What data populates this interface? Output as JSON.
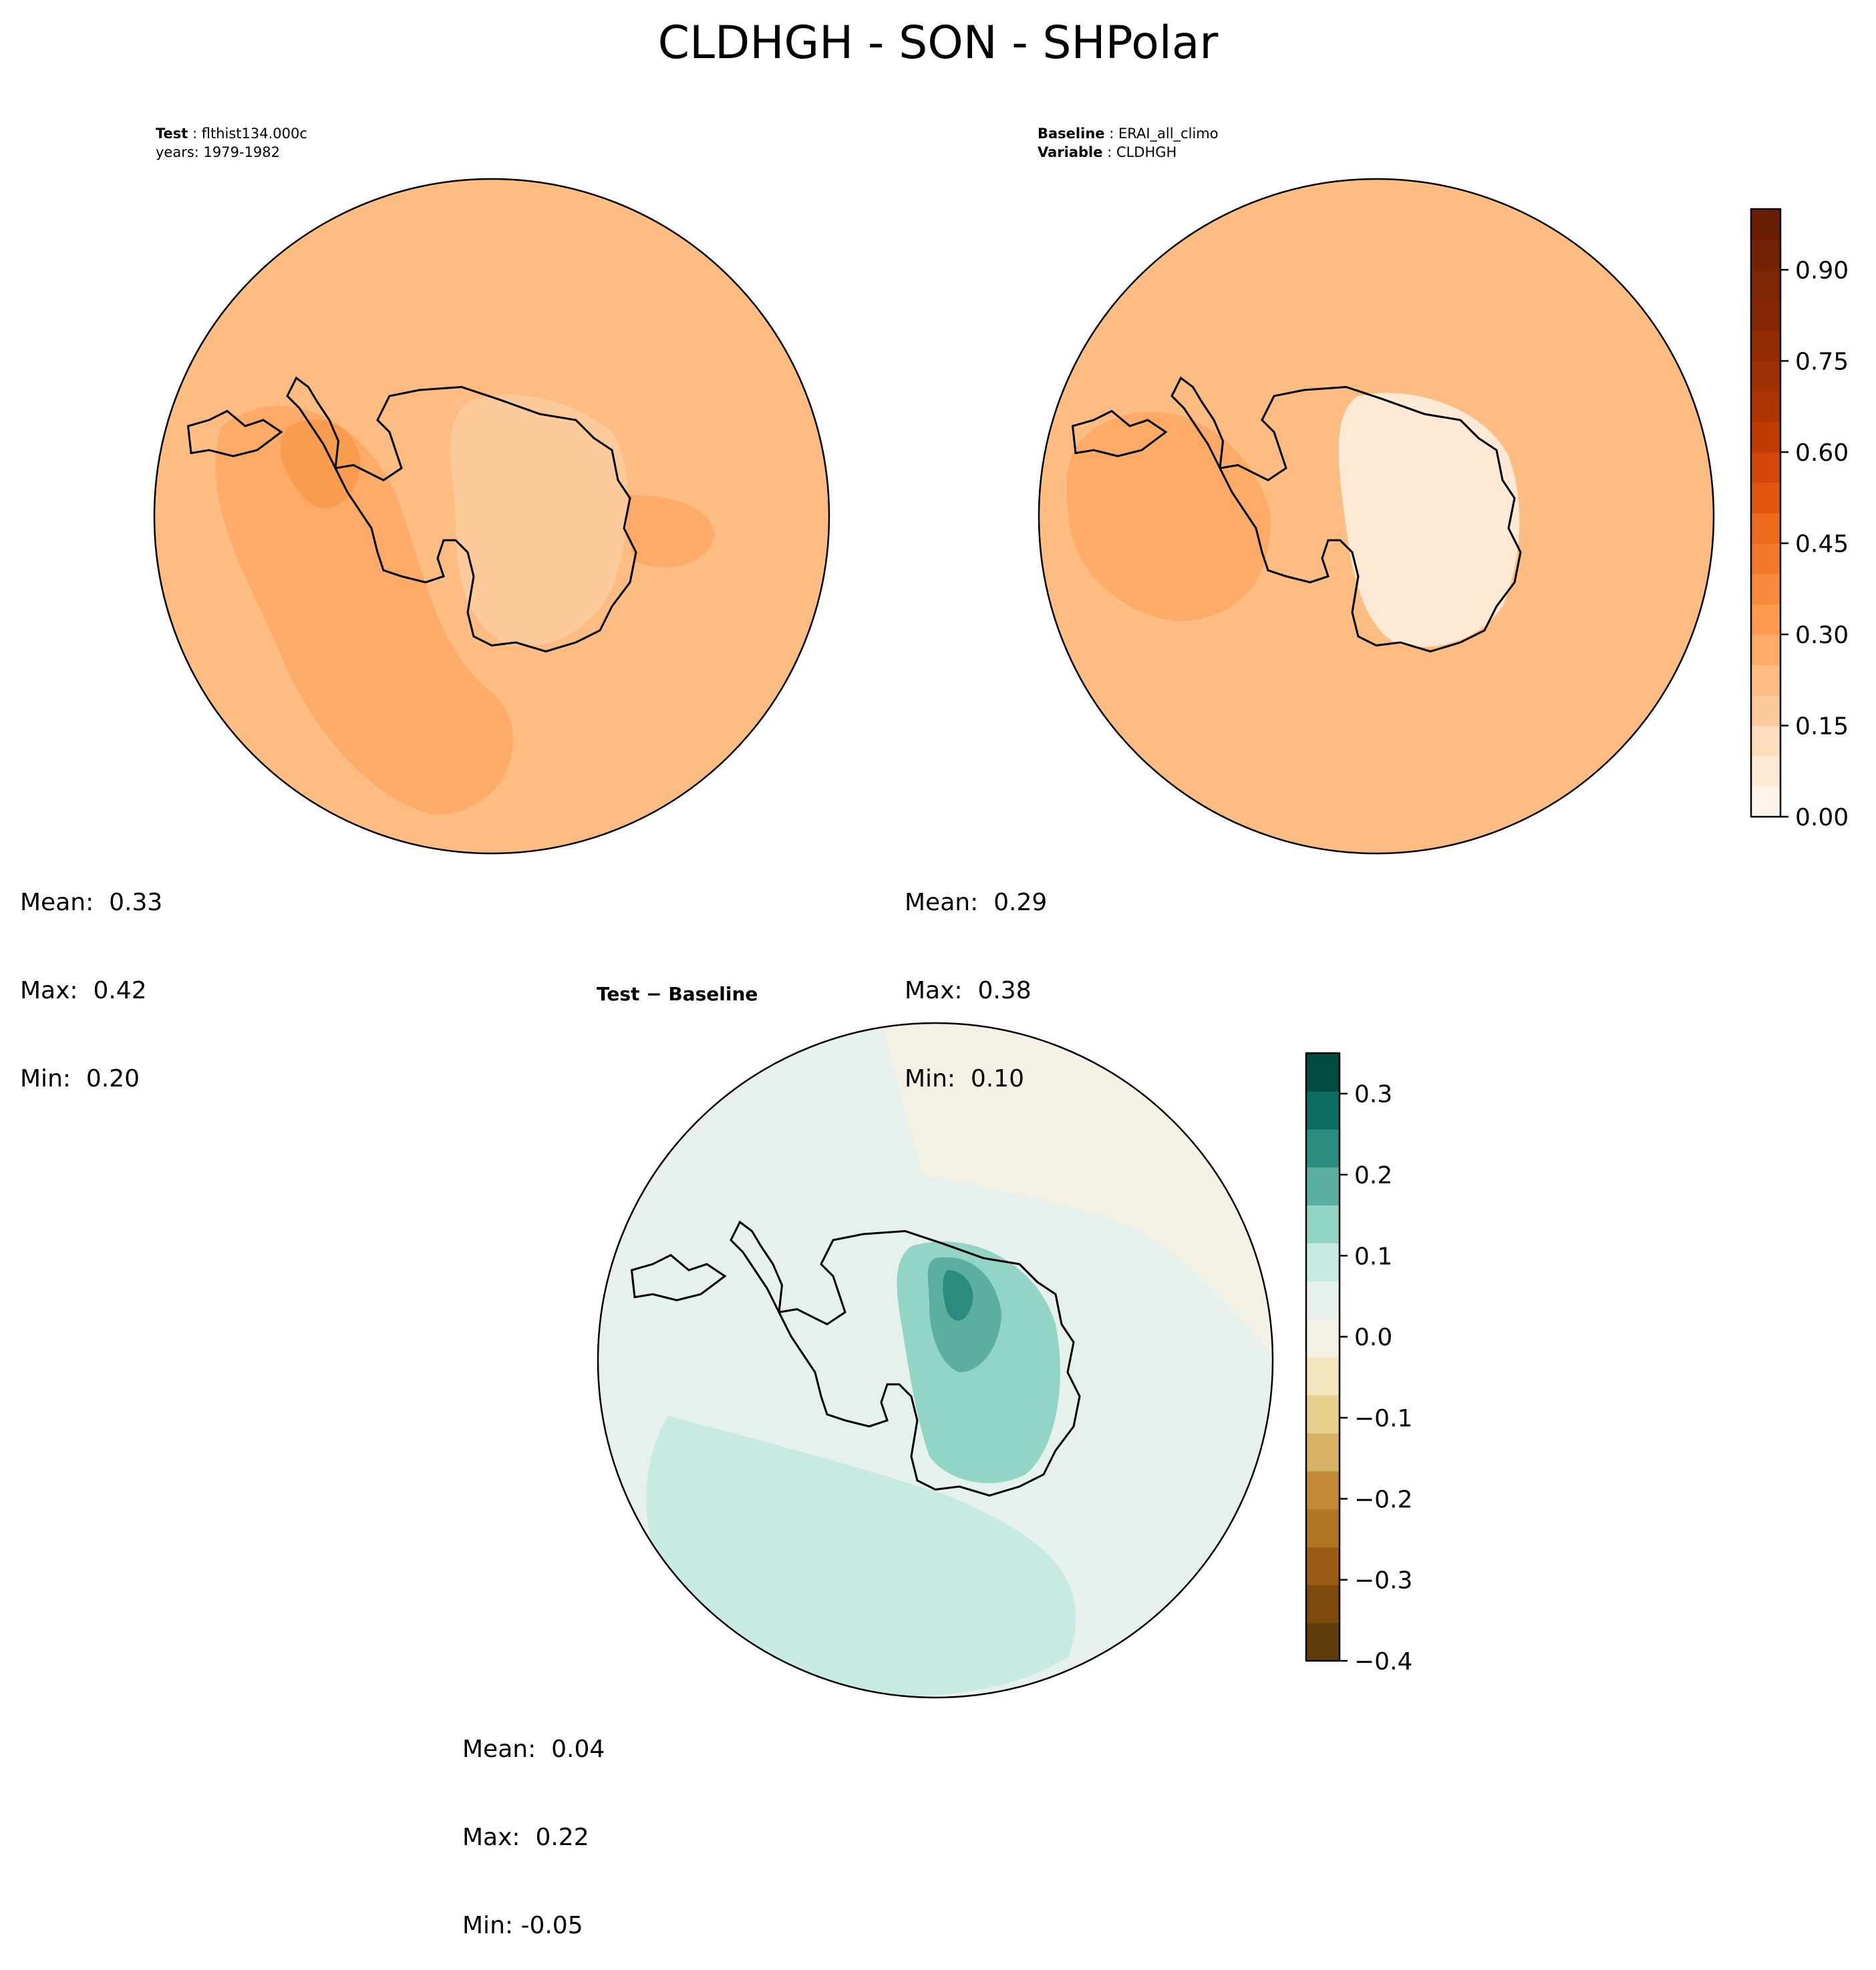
{
  "figure_title": "CLDHGH - SON - SHPolar",
  "panels": {
    "test": {
      "label_key": "Test",
      "label_value": "flthist134.000c",
      "line2": "years: 1979-1982",
      "stats": {
        "mean": "Mean:  0.33",
        "max": "Max:  0.42",
        "min": "Min:  0.20"
      }
    },
    "baseline": {
      "label_key": "Baseline",
      "label_value": "ERAI_all_climo",
      "label2_key": "Variable",
      "label2_value": "CLDHGH",
      "stats": {
        "mean": "Mean:  0.29",
        "max": "Max:  0.38",
        "min": "Min:  0.10"
      }
    },
    "diff": {
      "title": "Test − Baseline",
      "stats": {
        "mean": "Mean:  0.04",
        "max": "Max:  0.22",
        "min": "Min: -0.05"
      }
    }
  },
  "colorbars": {
    "main": {
      "colormap": "Oranges",
      "range": [
        0.0,
        1.0
      ],
      "levels": 20,
      "ticks": [
        {
          "value": 0.0,
          "label": "0.00"
        },
        {
          "value": 0.15,
          "label": "0.15"
        },
        {
          "value": 0.3,
          "label": "0.30"
        },
        {
          "value": 0.45,
          "label": "0.45"
        },
        {
          "value": 0.6,
          "label": "0.60"
        },
        {
          "value": 0.75,
          "label": "0.75"
        },
        {
          "value": 0.9,
          "label": "0.90"
        }
      ],
      "colors": [
        "#fff5eb",
        "#fee9d4",
        "#fdddbb",
        "#fdcb9b",
        "#fdbc82",
        "#fdab67",
        "#fd9a4e",
        "#f98a3c",
        "#f47a2b",
        "#ed691c",
        "#e15710",
        "#d3470a",
        "#c13c04",
        "#ae3403",
        "#a02f03",
        "#922a03",
        "#852503",
        "#7f2704",
        "#742204",
        "#6a1d03"
      ]
    },
    "diff": {
      "colormap": "BrBG",
      "range": [
        -0.4,
        0.35
      ],
      "ticks": [
        {
          "value": 0.3,
          "label": "0.3"
        },
        {
          "value": 0.2,
          "label": "0.2"
        },
        {
          "value": 0.1,
          "label": "0.1"
        },
        {
          "value": 0.0,
          "label": "0.0"
        },
        {
          "value": -0.1,
          "label": "−0.1"
        },
        {
          "value": -0.2,
          "label": "−0.2"
        },
        {
          "value": -0.3,
          "label": "−0.3"
        },
        {
          "value": -0.4,
          "label": "−0.4"
        }
      ],
      "colors_bottom_to_top": [
        "#603c0d",
        "#7d4a0c",
        "#9b5b14",
        "#b07426",
        "#c38a3a",
        "#d7b163",
        "#e7cf8e",
        "#f3e6bf",
        "#f5f0e4",
        "#e6f1ee",
        "#c7eae2",
        "#92d5c7",
        "#5aaf9f",
        "#298c7f",
        "#0b6c61",
        "#014a3f"
      ]
    }
  }
}
